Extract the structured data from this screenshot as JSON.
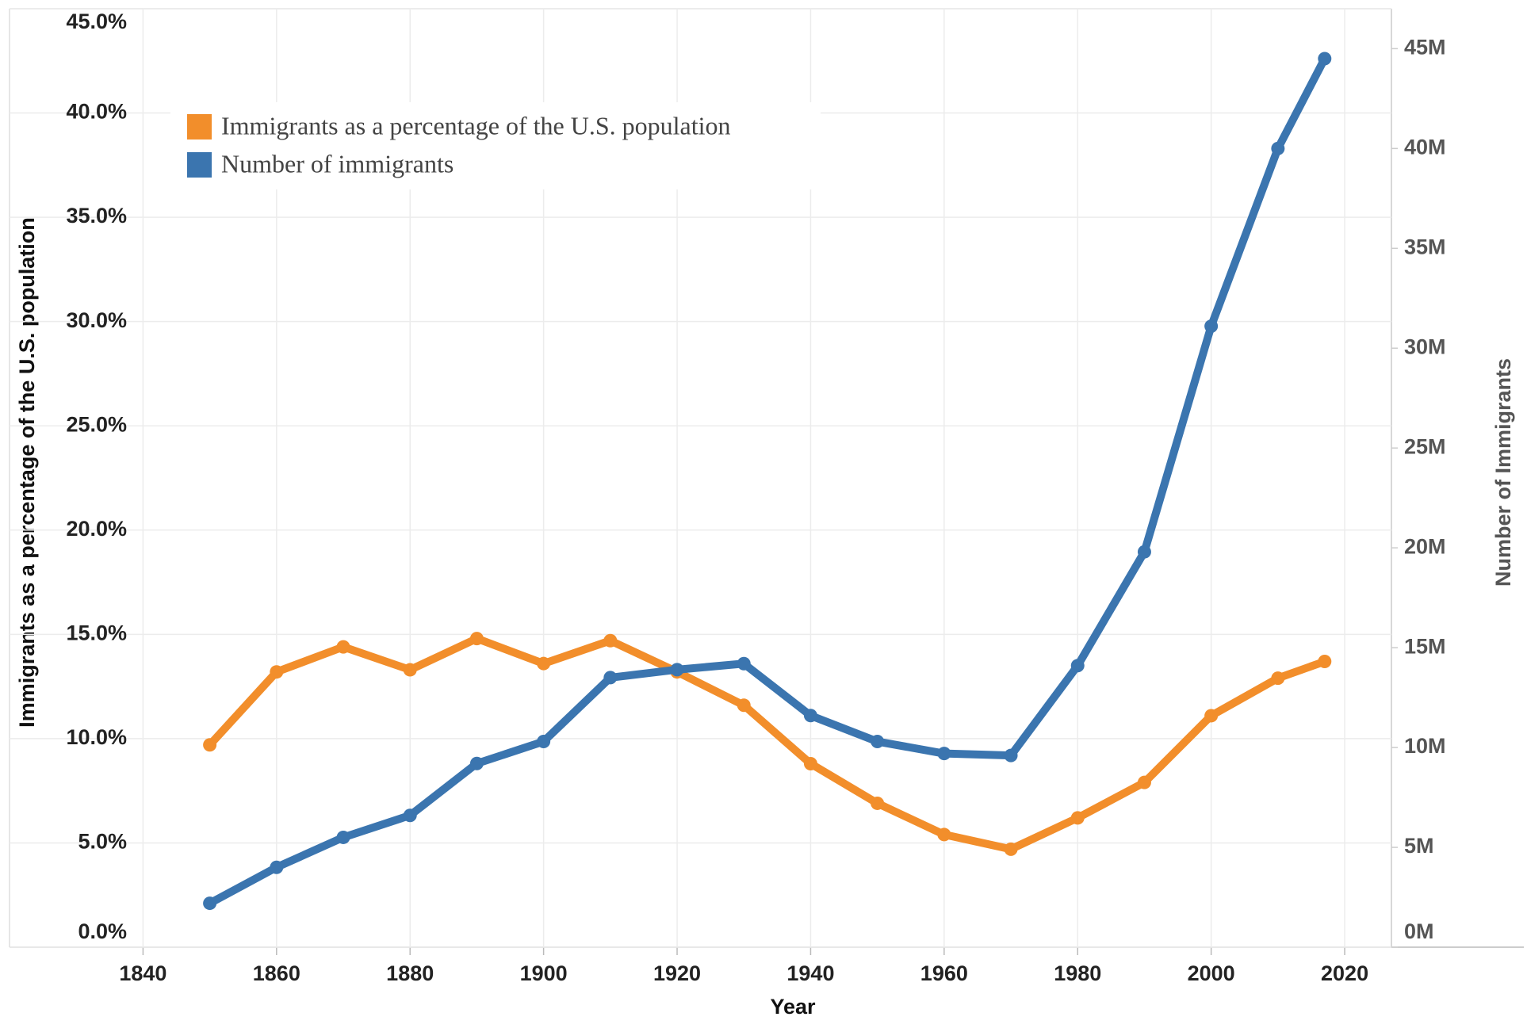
{
  "chart_data": {
    "type": "line",
    "x_label": "Year",
    "y_label": "Immigrants as a percentage of the U.S. population",
    "y2_label": "Number of Immigrants",
    "x": [
      1850,
      1860,
      1870,
      1880,
      1890,
      1900,
      1910,
      1920,
      1930,
      1940,
      1950,
      1960,
      1970,
      1980,
      1990,
      2000,
      2010,
      2017
    ],
    "series": [
      {
        "name": "Immigrants as a percentage of the U.S. population",
        "color": "#f28e2b",
        "axis": "y",
        "values": [
          9.7,
          13.2,
          14.4,
          13.3,
          14.8,
          13.6,
          14.7,
          13.2,
          11.6,
          8.8,
          6.9,
          5.4,
          4.7,
          6.2,
          7.9,
          11.1,
          12.9,
          13.7
        ]
      },
      {
        "name": "Number of immigrants",
        "color": "#3b75af",
        "axis": "y2",
        "values": [
          2.2,
          4.0,
          5.5,
          6.6,
          9.2,
          10.3,
          13.5,
          13.9,
          14.2,
          11.6,
          10.3,
          9.7,
          9.6,
          14.1,
          19.8,
          31.1,
          40.0,
          44.5
        ]
      }
    ],
    "xlim": [
      1820,
      2027
    ],
    "xticks": [
      1840,
      1860,
      1880,
      1900,
      1920,
      1940,
      1960,
      1980,
      2000,
      2020
    ],
    "ylim": [
      0,
      45
    ],
    "yticks": [
      {
        "value": 0,
        "label": "0.0%"
      },
      {
        "value": 5,
        "label": "5.0%"
      },
      {
        "value": 10,
        "label": "10.0%"
      },
      {
        "value": 15,
        "label": "15.0%"
      },
      {
        "value": 20,
        "label": "20.0%"
      },
      {
        "value": 25,
        "label": "25.0%"
      },
      {
        "value": 30,
        "label": "30.0%"
      },
      {
        "value": 35,
        "label": "35.0%"
      },
      {
        "value": 40,
        "label": "40.0%"
      },
      {
        "value": 45,
        "label": "45.0%"
      }
    ],
    "y2lim": [
      0,
      47
    ],
    "y2ticks": [
      {
        "value": 0,
        "label": "0M"
      },
      {
        "value": 5,
        "label": "5M"
      },
      {
        "value": 10,
        "label": "10M"
      },
      {
        "value": 15,
        "label": "15M"
      },
      {
        "value": 20,
        "label": "20M"
      },
      {
        "value": 25,
        "label": "25M"
      },
      {
        "value": 30,
        "label": "30M"
      },
      {
        "value": 35,
        "label": "35M"
      },
      {
        "value": 40,
        "label": "40M"
      },
      {
        "value": 45,
        "label": "45M"
      }
    ],
    "grid": true,
    "legend": "upper left"
  }
}
